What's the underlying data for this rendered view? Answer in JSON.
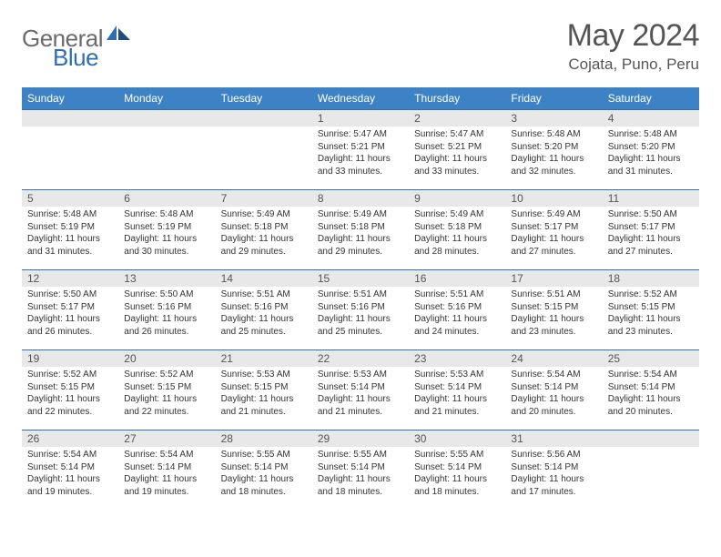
{
  "logo": {
    "part1": "General",
    "part2": "Blue"
  },
  "header": {
    "month_title": "May 2024",
    "location": "Cojata, Puno, Peru"
  },
  "styling": {
    "header_bg": "#3d82c4",
    "header_text": "#ffffff",
    "daynum_bg": "#e8e8e8",
    "border_color": "#2f6fb0",
    "page_bg": "#ffffff",
    "body_text": "#333333",
    "logo_gray": "#6b6b6b",
    "logo_blue": "#2f6fb0",
    "title_fontsize": 34,
    "location_fontsize": 17,
    "dayhead_fontsize": 12,
    "cell_fontsize": 10
  },
  "day_headers": [
    "Sunday",
    "Monday",
    "Tuesday",
    "Wednesday",
    "Thursday",
    "Friday",
    "Saturday"
  ],
  "weeks": [
    [
      {
        "num": "",
        "lines": []
      },
      {
        "num": "",
        "lines": []
      },
      {
        "num": "",
        "lines": []
      },
      {
        "num": "1",
        "lines": [
          "Sunrise: 5:47 AM",
          "Sunset: 5:21 PM",
          "Daylight: 11 hours",
          "and 33 minutes."
        ]
      },
      {
        "num": "2",
        "lines": [
          "Sunrise: 5:47 AM",
          "Sunset: 5:21 PM",
          "Daylight: 11 hours",
          "and 33 minutes."
        ]
      },
      {
        "num": "3",
        "lines": [
          "Sunrise: 5:48 AM",
          "Sunset: 5:20 PM",
          "Daylight: 11 hours",
          "and 32 minutes."
        ]
      },
      {
        "num": "4",
        "lines": [
          "Sunrise: 5:48 AM",
          "Sunset: 5:20 PM",
          "Daylight: 11 hours",
          "and 31 minutes."
        ]
      }
    ],
    [
      {
        "num": "5",
        "lines": [
          "Sunrise: 5:48 AM",
          "Sunset: 5:19 PM",
          "Daylight: 11 hours",
          "and 31 minutes."
        ]
      },
      {
        "num": "6",
        "lines": [
          "Sunrise: 5:48 AM",
          "Sunset: 5:19 PM",
          "Daylight: 11 hours",
          "and 30 minutes."
        ]
      },
      {
        "num": "7",
        "lines": [
          "Sunrise: 5:49 AM",
          "Sunset: 5:18 PM",
          "Daylight: 11 hours",
          "and 29 minutes."
        ]
      },
      {
        "num": "8",
        "lines": [
          "Sunrise: 5:49 AM",
          "Sunset: 5:18 PM",
          "Daylight: 11 hours",
          "and 29 minutes."
        ]
      },
      {
        "num": "9",
        "lines": [
          "Sunrise: 5:49 AM",
          "Sunset: 5:18 PM",
          "Daylight: 11 hours",
          "and 28 minutes."
        ]
      },
      {
        "num": "10",
        "lines": [
          "Sunrise: 5:49 AM",
          "Sunset: 5:17 PM",
          "Daylight: 11 hours",
          "and 27 minutes."
        ]
      },
      {
        "num": "11",
        "lines": [
          "Sunrise: 5:50 AM",
          "Sunset: 5:17 PM",
          "Daylight: 11 hours",
          "and 27 minutes."
        ]
      }
    ],
    [
      {
        "num": "12",
        "lines": [
          "Sunrise: 5:50 AM",
          "Sunset: 5:17 PM",
          "Daylight: 11 hours",
          "and 26 minutes."
        ]
      },
      {
        "num": "13",
        "lines": [
          "Sunrise: 5:50 AM",
          "Sunset: 5:16 PM",
          "Daylight: 11 hours",
          "and 26 minutes."
        ]
      },
      {
        "num": "14",
        "lines": [
          "Sunrise: 5:51 AM",
          "Sunset: 5:16 PM",
          "Daylight: 11 hours",
          "and 25 minutes."
        ]
      },
      {
        "num": "15",
        "lines": [
          "Sunrise: 5:51 AM",
          "Sunset: 5:16 PM",
          "Daylight: 11 hours",
          "and 25 minutes."
        ]
      },
      {
        "num": "16",
        "lines": [
          "Sunrise: 5:51 AM",
          "Sunset: 5:16 PM",
          "Daylight: 11 hours",
          "and 24 minutes."
        ]
      },
      {
        "num": "17",
        "lines": [
          "Sunrise: 5:51 AM",
          "Sunset: 5:15 PM",
          "Daylight: 11 hours",
          "and 23 minutes."
        ]
      },
      {
        "num": "18",
        "lines": [
          "Sunrise: 5:52 AM",
          "Sunset: 5:15 PM",
          "Daylight: 11 hours",
          "and 23 minutes."
        ]
      }
    ],
    [
      {
        "num": "19",
        "lines": [
          "Sunrise: 5:52 AM",
          "Sunset: 5:15 PM",
          "Daylight: 11 hours",
          "and 22 minutes."
        ]
      },
      {
        "num": "20",
        "lines": [
          "Sunrise: 5:52 AM",
          "Sunset: 5:15 PM",
          "Daylight: 11 hours",
          "and 22 minutes."
        ]
      },
      {
        "num": "21",
        "lines": [
          "Sunrise: 5:53 AM",
          "Sunset: 5:15 PM",
          "Daylight: 11 hours",
          "and 21 minutes."
        ]
      },
      {
        "num": "22",
        "lines": [
          "Sunrise: 5:53 AM",
          "Sunset: 5:14 PM",
          "Daylight: 11 hours",
          "and 21 minutes."
        ]
      },
      {
        "num": "23",
        "lines": [
          "Sunrise: 5:53 AM",
          "Sunset: 5:14 PM",
          "Daylight: 11 hours",
          "and 21 minutes."
        ]
      },
      {
        "num": "24",
        "lines": [
          "Sunrise: 5:54 AM",
          "Sunset: 5:14 PM",
          "Daylight: 11 hours",
          "and 20 minutes."
        ]
      },
      {
        "num": "25",
        "lines": [
          "Sunrise: 5:54 AM",
          "Sunset: 5:14 PM",
          "Daylight: 11 hours",
          "and 20 minutes."
        ]
      }
    ],
    [
      {
        "num": "26",
        "lines": [
          "Sunrise: 5:54 AM",
          "Sunset: 5:14 PM",
          "Daylight: 11 hours",
          "and 19 minutes."
        ]
      },
      {
        "num": "27",
        "lines": [
          "Sunrise: 5:54 AM",
          "Sunset: 5:14 PM",
          "Daylight: 11 hours",
          "and 19 minutes."
        ]
      },
      {
        "num": "28",
        "lines": [
          "Sunrise: 5:55 AM",
          "Sunset: 5:14 PM",
          "Daylight: 11 hours",
          "and 18 minutes."
        ]
      },
      {
        "num": "29",
        "lines": [
          "Sunrise: 5:55 AM",
          "Sunset: 5:14 PM",
          "Daylight: 11 hours",
          "and 18 minutes."
        ]
      },
      {
        "num": "30",
        "lines": [
          "Sunrise: 5:55 AM",
          "Sunset: 5:14 PM",
          "Daylight: 11 hours",
          "and 18 minutes."
        ]
      },
      {
        "num": "31",
        "lines": [
          "Sunrise: 5:56 AM",
          "Sunset: 5:14 PM",
          "Daylight: 11 hours",
          "and 17 minutes."
        ]
      },
      {
        "num": "",
        "lines": []
      }
    ]
  ]
}
